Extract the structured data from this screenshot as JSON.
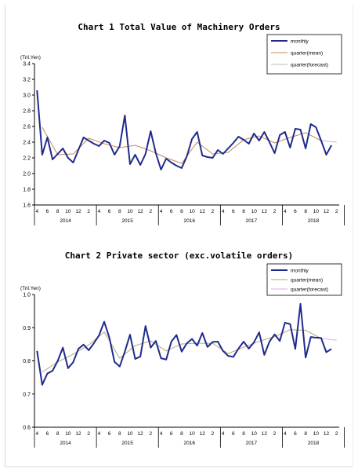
{
  "charts": [
    {
      "title": "Chart 1  Total Value of Machinery Orders"
    },
    {
      "title": "Chart 2  Private sector (exc.volatile orders)"
    }
  ],
  "chart_data": [
    {
      "type": "line",
      "title": "Chart 1  Total Value of Machinery Orders",
      "ylabel": "(Tril.Yen)",
      "ylim": [
        1.6,
        3.4
      ],
      "yticks": [
        1.6,
        1.8,
        2.0,
        2.2,
        2.4,
        2.6,
        2.8,
        3.0,
        3.2,
        3.4
      ],
      "ytick_labels": [
        "1.6",
        "1.8",
        "2.0",
        "2.2",
        "2.4",
        "2.6",
        "2.8",
        "3.0",
        "3.2",
        "3.4"
      ],
      "month_ticks": [
        "4",
        "6",
        "8",
        "10",
        "12",
        "2",
        "4",
        "6",
        "8",
        "10",
        "12",
        "2",
        "4",
        "6",
        "8",
        "10",
        "12",
        "2",
        "4",
        "6",
        "8",
        "10",
        "12",
        "2",
        "4",
        "6",
        "8",
        "10",
        "12",
        "2"
      ],
      "years": [
        "2014",
        "2015",
        "2016",
        "2017",
        "2018"
      ],
      "legend_position": "top-right",
      "colors": {
        "monthly": "#1f2a8c",
        "mean": "#c08a5a",
        "forecast": "#bdbdbd"
      },
      "series": [
        {
          "name": "monthly",
          "values": [
            3.06,
            2.24,
            2.46,
            2.18,
            2.25,
            2.32,
            2.2,
            2.14,
            2.3,
            2.46,
            2.42,
            2.38,
            2.35,
            2.42,
            2.39,
            2.24,
            2.35,
            2.74,
            2.12,
            2.24,
            2.11,
            2.25,
            2.54,
            2.26,
            2.05,
            2.19,
            2.14,
            2.1,
            2.07,
            2.22,
            2.44,
            2.53,
            2.23,
            2.21,
            2.2,
            2.3,
            2.25,
            2.32,
            2.39,
            2.47,
            2.43,
            2.38,
            2.51,
            2.42,
            2.53,
            2.4,
            2.26,
            2.49,
            2.53,
            2.33,
            2.57,
            2.56,
            2.32,
            2.63,
            2.59,
            2.42,
            2.24,
            2.36
          ]
        },
        {
          "name": "quarter(mean)",
          "x": [
            1,
            4,
            7,
            10,
            13,
            16,
            19,
            22,
            25,
            28,
            31,
            34,
            37,
            40,
            43,
            46,
            49,
            52,
            55
          ],
          "values": [
            2.59,
            2.24,
            2.25,
            2.45,
            2.38,
            2.33,
            2.36,
            2.29,
            2.2,
            2.13,
            2.4,
            2.25,
            2.27,
            2.43,
            2.48,
            2.39,
            2.46,
            2.52,
            2.42
          ]
        },
        {
          "name": "quarter(forecast)",
          "x": [
            55,
            58
          ],
          "values": [
            2.42,
            2.4
          ]
        }
      ]
    },
    {
      "type": "line",
      "title": "Chart 2  Private sector (exc.volatile orders)",
      "ylabel": "(Tril.Yen)",
      "ylim": [
        0.6,
        1.0
      ],
      "yticks": [
        0.6,
        0.7,
        0.8,
        0.9,
        1.0
      ],
      "ytick_labels": [
        "0.6",
        "0.7",
        "0.8",
        "0.9",
        "1.0"
      ],
      "month_ticks": [
        "4",
        "6",
        "8",
        "10",
        "12",
        "2",
        "4",
        "6",
        "8",
        "10",
        "12",
        "2",
        "4",
        "6",
        "8",
        "10",
        "12",
        "2",
        "4",
        "6",
        "8",
        "10",
        "12",
        "2",
        "4",
        "6",
        "8",
        "10",
        "12",
        "2"
      ],
      "years": [
        "2014",
        "2015",
        "2016",
        "2017",
        "2018"
      ],
      "legend_position": "top-right",
      "colors": {
        "monthly": "#1f2a8c",
        "mean": "#b5a37a",
        "forecast": "#e2a7e2"
      },
      "series": [
        {
          "name": "monthly",
          "values": [
            0.83,
            0.728,
            0.762,
            0.77,
            0.8,
            0.84,
            0.778,
            0.796,
            0.836,
            0.849,
            0.832,
            0.853,
            0.877,
            0.918,
            0.87,
            0.797,
            0.783,
            0.828,
            0.879,
            0.806,
            0.813,
            0.905,
            0.84,
            0.86,
            0.808,
            0.804,
            0.858,
            0.878,
            0.828,
            0.853,
            0.866,
            0.846,
            0.884,
            0.842,
            0.857,
            0.858,
            0.83,
            0.815,
            0.812,
            0.837,
            0.858,
            0.837,
            0.856,
            0.886,
            0.818,
            0.858,
            0.88,
            0.86,
            0.915,
            0.911,
            0.836,
            0.972,
            0.81,
            0.872,
            0.87,
            0.869,
            0.826,
            0.836
          ]
        },
        {
          "name": "quarter(mean)",
          "x": [
            1,
            4,
            7,
            10,
            13,
            16,
            19,
            22,
            25,
            28,
            31,
            34,
            37,
            40,
            43,
            46,
            49,
            52,
            55
          ],
          "values": [
            0.766,
            0.797,
            0.82,
            0.848,
            0.887,
            0.808,
            0.846,
            0.86,
            0.83,
            0.851,
            0.853,
            0.853,
            0.822,
            0.841,
            0.859,
            0.873,
            0.894,
            0.892,
            0.868
          ]
        },
        {
          "name": "quarter(forecast)",
          "x": [
            55,
            58
          ],
          "values": [
            0.868,
            0.862
          ]
        }
      ]
    }
  ]
}
